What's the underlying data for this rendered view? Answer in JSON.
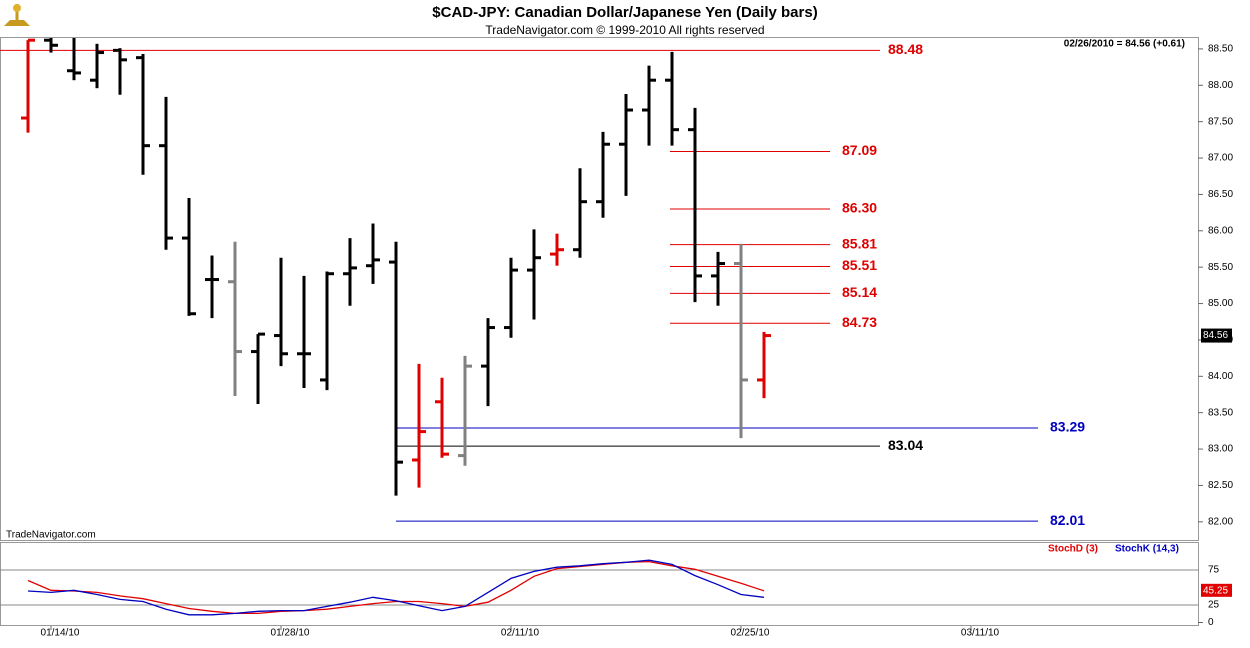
{
  "chart_data": [
    {
      "type": "ohlc",
      "title": "$CAD-JPY:  Canadian Dollar/Japanese Yen  (Daily bars)",
      "subtitle": "TradeNavigator.com © 1999-2010 All rights reserved",
      "status": "02/26/2010 = 84.56 (+0.61)",
      "watermark": "TradeNavigator.com",
      "categories": [
        null,
        "01/14/10",
        null,
        null,
        null,
        null,
        null,
        null,
        null,
        null,
        null,
        "01/28/10",
        null,
        null,
        null,
        null,
        null,
        null,
        null,
        null,
        null,
        "02/11/10",
        null,
        null,
        null,
        null,
        null,
        null,
        null,
        null,
        null,
        "02/25/10",
        null,
        null,
        null,
        null,
        null,
        null,
        null,
        null,
        null,
        "03/11/10",
        null
      ],
      "open": [
        87.55,
        88.62,
        88.2,
        88.07,
        88.48,
        88.38,
        87.17,
        85.9,
        85.33,
        85.3,
        84.34,
        84.56,
        84.31,
        83.95,
        85.41,
        85.52,
        85.57,
        82.85,
        83.65,
        82.91,
        84.14,
        84.67,
        85.46,
        85.68,
        85.74,
        86.4,
        87.19,
        87.66,
        88.07,
        87.39,
        85.38,
        85.55,
        83.95,
        null,
        null,
        null,
        null,
        null,
        null,
        null,
        null,
        null,
        null
      ],
      "high": [
        88.62,
        88.65,
        88.65,
        88.57,
        88.51,
        88.43,
        87.84,
        86.45,
        85.66,
        85.85,
        84.58,
        85.63,
        85.38,
        85.44,
        85.9,
        86.1,
        85.85,
        84.17,
        83.98,
        84.28,
        84.8,
        85.63,
        86.02,
        85.96,
        86.86,
        87.36,
        87.88,
        88.27,
        88.46,
        87.69,
        85.71,
        85.82,
        84.61,
        null,
        null,
        null,
        null,
        null,
        null,
        null,
        null,
        null,
        null
      ],
      "low": [
        87.35,
        88.45,
        88.07,
        87.96,
        87.87,
        86.77,
        85.74,
        84.83,
        84.8,
        83.73,
        83.62,
        84.14,
        83.84,
        83.81,
        84.97,
        85.27,
        82.36,
        82.47,
        82.88,
        82.77,
        83.59,
        84.53,
        84.78,
        85.52,
        85.63,
        86.18,
        86.48,
        87.17,
        87.17,
        85.02,
        84.97,
        83.15,
        83.7,
        null,
        null,
        null,
        null,
        null,
        null,
        null,
        null,
        null,
        null
      ],
      "close": [
        88.62,
        88.55,
        88.17,
        88.45,
        88.35,
        87.17,
        85.9,
        84.86,
        85.33,
        84.34,
        84.58,
        84.31,
        84.31,
        85.41,
        85.49,
        85.6,
        82.82,
        83.24,
        82.93,
        84.14,
        84.67,
        85.46,
        85.63,
        85.74,
        86.4,
        87.19,
        87.66,
        88.07,
        87.39,
        85.38,
        85.55,
        83.95,
        84.56,
        null,
        null,
        null,
        null,
        null,
        null,
        null,
        null,
        null,
        null
      ],
      "colors": [
        "#e00000",
        "#000000",
        "#000000",
        "#000000",
        "#000000",
        "#000000",
        "#000000",
        "#000000",
        "#000000",
        "#808080",
        "#000000",
        "#000000",
        "#000000",
        "#000000",
        "#000000",
        "#000000",
        "#000000",
        "#e00000",
        "#e00000",
        "#808080",
        "#000000",
        "#000000",
        "#000000",
        "#e00000",
        "#000000",
        "#000000",
        "#000000",
        "#000000",
        "#000000",
        "#000000",
        "#000000",
        "#808080",
        "#e00000",
        null,
        null,
        null,
        null,
        null,
        null,
        null,
        null,
        null,
        null
      ],
      "levels": {
        "values": [
          88.48,
          87.09,
          86.3,
          85.81,
          85.51,
          85.14,
          84.73,
          83.29,
          83.04,
          82.01
        ],
        "value_labels": [
          "88.48",
          "87.09",
          "86.30",
          "85.81",
          "85.51",
          "85.14",
          "84.73",
          "83.29",
          "83.04",
          "82.01"
        ],
        "colors": [
          "#e00000",
          "#e00000",
          "#e00000",
          "#e00000",
          "#e00000",
          "#e00000",
          "#e00000",
          "#0000c0",
          "#000000",
          "#0000c0"
        ]
      },
      "ylim": [
        81.75,
        88.65
      ],
      "yticks": [
        {
          "value": 82,
          "label": "82.00"
        },
        {
          "value": 82.5,
          "label": "82.50"
        },
        {
          "value": 83,
          "label": "83.00"
        },
        {
          "value": 83.5,
          "label": "83.50"
        },
        {
          "value": 84,
          "label": "84.00"
        },
        {
          "value": 84.5,
          "label": "84.50"
        },
        {
          "value": 85,
          "label": "85.00"
        },
        {
          "value": 85.5,
          "label": "85.50"
        },
        {
          "value": 86,
          "label": "86.00"
        },
        {
          "value": 86.5,
          "label": "86.50"
        },
        {
          "value": 87,
          "label": "87.00"
        },
        {
          "value": 87.5,
          "label": "87.50"
        },
        {
          "value": 88,
          "label": "88.00"
        },
        {
          "value": 88.5,
          "label": "88.50"
        }
      ]
    },
    {
      "type": "line",
      "ylim": [
        0,
        100
      ],
      "yticks": [
        0,
        25,
        75
      ],
      "series": [
        {
          "name": "StochD (3)",
          "color": "#e00000",
          "values": [
            60,
            46,
            45,
            43,
            38,
            34,
            27,
            20,
            16,
            13,
            13,
            16,
            17,
            19,
            23,
            27,
            30,
            30,
            27,
            23,
            29,
            46,
            66,
            77,
            80,
            83,
            86,
            87,
            81,
            76,
            66,
            56,
            45.25,
            null,
            null,
            null,
            null,
            null,
            null,
            null,
            null,
            null,
            null
          ],
          "last_label": "45.25"
        },
        {
          "name": "StochK (14,3)",
          "color": "#0000c0",
          "values": [
            45,
            43,
            46,
            40,
            33,
            30,
            19,
            11,
            11,
            13,
            16,
            17,
            17,
            23,
            29,
            36,
            31,
            24,
            17,
            23,
            43,
            63,
            73,
            79,
            81,
            84,
            86,
            89,
            83,
            67,
            54,
            40,
            36,
            null,
            null,
            null,
            null,
            null,
            null,
            null,
            null,
            null,
            null
          ]
        }
      ]
    }
  ]
}
